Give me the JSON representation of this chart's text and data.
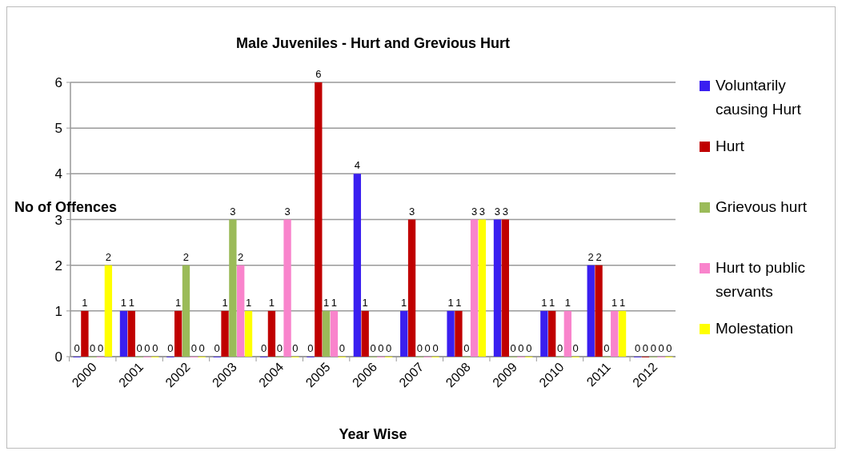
{
  "chart_data": {
    "type": "bar",
    "title": "Male Juveniles - Hurt and Grevious Hurt",
    "xlabel": "Year Wise",
    "ylabel": "No of Offences",
    "categories": [
      "2000",
      "2001",
      "2002",
      "2003",
      "2004",
      "2005",
      "2006",
      "2007",
      "2008",
      "2009",
      "2010",
      "2011",
      "2012"
    ],
    "series": [
      {
        "name": "Voluntarily causing Hurt",
        "color": "#3a1ff0",
        "values": [
          0,
          1,
          0,
          0,
          0,
          0,
          4,
          1,
          1,
          3,
          1,
          2,
          0
        ]
      },
      {
        "name": "Hurt",
        "color": "#c00000",
        "values": [
          1,
          1,
          1,
          1,
          1,
          6,
          1,
          3,
          1,
          3,
          1,
          2,
          0
        ]
      },
      {
        "name": "Grievous hurt",
        "color": "#9bbb59",
        "values": [
          0,
          0,
          2,
          3,
          0,
          1,
          0,
          0,
          0,
          0,
          0,
          0,
          0
        ]
      },
      {
        "name": "Hurt to public servants",
        "color": "#f984cc",
        "values": [
          0,
          0,
          0,
          2,
          3,
          1,
          0,
          0,
          3,
          0,
          1,
          1,
          0
        ]
      },
      {
        "name": "Molestation",
        "color": "#ffff00",
        "values": [
          2,
          0,
          0,
          1,
          0,
          0,
          0,
          0,
          3,
          0,
          0,
          1,
          0
        ]
      }
    ],
    "ylim": [
      0,
      6
    ],
    "yticks": [
      0,
      1,
      2,
      3,
      4,
      5,
      6
    ],
    "grid": "y",
    "legend": "right",
    "data_labels": true
  }
}
